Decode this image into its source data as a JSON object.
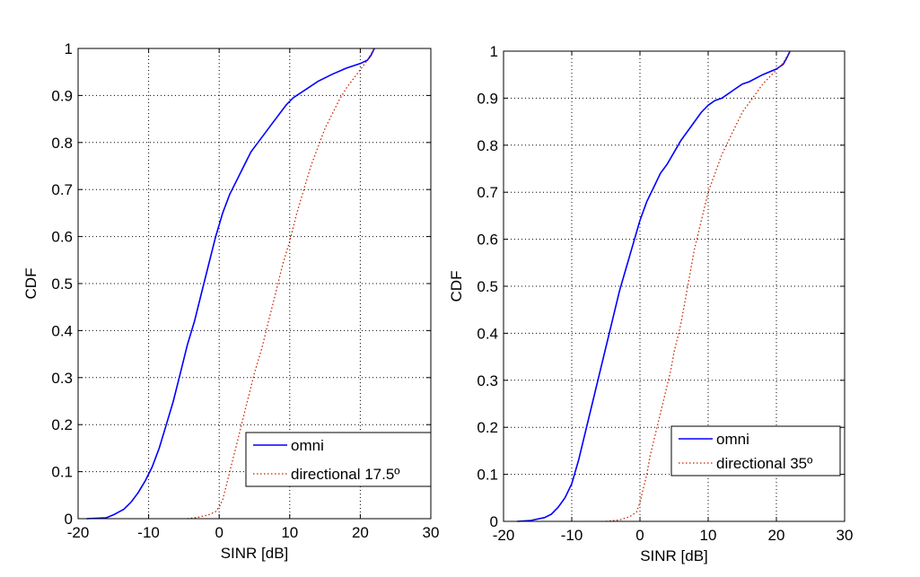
{
  "chart_data": [
    {
      "type": "line",
      "xlabel": "SINR [dB]",
      "ylabel": "CDF",
      "xlim": [
        -20,
        30
      ],
      "ylim": [
        0,
        1
      ],
      "xticks": [
        -20,
        -10,
        0,
        10,
        20,
        30
      ],
      "yticks": [
        0,
        0.1,
        0.2,
        0.3,
        0.4,
        0.5,
        0.6,
        0.7,
        0.8,
        0.9,
        1
      ],
      "xtick_labels": [
        "-20",
        "-10",
        "0",
        "10",
        "20",
        "30"
      ],
      "ytick_labels": [
        "0",
        "0.1",
        "0.2",
        "0.3",
        "0.4",
        "0.5",
        "0.6",
        "0.7",
        "0.8",
        "0.9",
        "1"
      ],
      "grid": true,
      "legend_position": "bottom-right",
      "series": [
        {
          "name": "omni",
          "color": "#0000ff",
          "style": "solid",
          "x": [
            -18.8,
            -16,
            -15,
            -13.5,
            -12.5,
            -11.5,
            -10.5,
            -9.5,
            -8.5,
            -7.5,
            -6.5,
            -5.5,
            -4.5,
            -3.5,
            -2.5,
            -1.5,
            -0.5,
            0.5,
            1.5,
            2.5,
            3.5,
            4.5,
            5.5,
            6.5,
            7.5,
            8.5,
            9.5,
            10.5,
            12,
            14,
            16,
            18,
            20,
            21,
            21.5,
            22
          ],
          "y": [
            0,
            0.002,
            0.008,
            0.02,
            0.035,
            0.055,
            0.08,
            0.11,
            0.15,
            0.2,
            0.25,
            0.31,
            0.37,
            0.42,
            0.48,
            0.54,
            0.6,
            0.65,
            0.69,
            0.72,
            0.75,
            0.78,
            0.8,
            0.82,
            0.84,
            0.86,
            0.88,
            0.895,
            0.91,
            0.93,
            0.945,
            0.958,
            0.968,
            0.975,
            0.985,
            1.0
          ]
        },
        {
          "name": "directional 17.5º",
          "color": "#cc2200",
          "style": "dotted",
          "x": [
            -4.5,
            -3,
            -1.5,
            -0.5,
            0,
            0.5,
            1,
            1.5,
            2,
            2.5,
            3,
            3.5,
            4,
            4.5,
            5,
            6,
            7,
            8,
            9,
            10,
            11,
            12,
            13,
            14,
            15,
            16,
            17,
            18,
            19,
            20,
            21,
            21.5,
            22
          ],
          "y": [
            0,
            0.003,
            0.008,
            0.015,
            0.025,
            0.04,
            0.07,
            0.1,
            0.13,
            0.16,
            0.19,
            0.22,
            0.25,
            0.28,
            0.31,
            0.36,
            0.42,
            0.48,
            0.54,
            0.59,
            0.65,
            0.7,
            0.75,
            0.79,
            0.83,
            0.86,
            0.89,
            0.915,
            0.935,
            0.955,
            0.975,
            0.988,
            1.0
          ]
        }
      ]
    },
    {
      "type": "line",
      "xlabel": "SINR [dB]",
      "ylabel": "CDF",
      "xlim": [
        -20,
        30
      ],
      "ylim": [
        0,
        1
      ],
      "xticks": [
        -20,
        -10,
        0,
        10,
        20,
        30
      ],
      "yticks": [
        0,
        0.1,
        0.2,
        0.3,
        0.4,
        0.5,
        0.6,
        0.7,
        0.8,
        0.9,
        1
      ],
      "xtick_labels": [
        "-20",
        "-10",
        "0",
        "10",
        "20",
        "30"
      ],
      "ytick_labels": [
        "0",
        "0.1",
        "0.2",
        "0.3",
        "0.4",
        "0.5",
        "0.6",
        "0.7",
        "0.8",
        "0.9",
        "1"
      ],
      "grid": true,
      "legend_position": "bottom-right",
      "series": [
        {
          "name": "omni",
          "color": "#0000ff",
          "style": "solid",
          "x": [
            -18,
            -16,
            -14,
            -13,
            -12,
            -11,
            -10,
            -9,
            -8,
            -7,
            -6,
            -5,
            -4,
            -3,
            -2,
            -1,
            0,
            1,
            2,
            3,
            4,
            5,
            6,
            7,
            8,
            9,
            10,
            11,
            12,
            13,
            14,
            15,
            16,
            18,
            20,
            21,
            21.5,
            22
          ],
          "y": [
            0,
            0.002,
            0.008,
            0.015,
            0.03,
            0.05,
            0.08,
            0.13,
            0.19,
            0.25,
            0.31,
            0.37,
            0.43,
            0.49,
            0.54,
            0.59,
            0.64,
            0.68,
            0.71,
            0.74,
            0.76,
            0.785,
            0.81,
            0.83,
            0.85,
            0.87,
            0.885,
            0.895,
            0.9,
            0.91,
            0.92,
            0.93,
            0.935,
            0.95,
            0.962,
            0.972,
            0.985,
            1.0
          ]
        },
        {
          "name": "directional 35º",
          "color": "#cc2200",
          "style": "dotted",
          "x": [
            -5,
            -3,
            -1.5,
            -0.5,
            0,
            0.5,
            1,
            1.5,
            2,
            2.5,
            3,
            3.5,
            4,
            4.5,
            5,
            6,
            7,
            8,
            9,
            10,
            11,
            12,
            13,
            14,
            15,
            16,
            17,
            18,
            19,
            20,
            21,
            21.5,
            22
          ],
          "y": [
            0,
            0.003,
            0.01,
            0.02,
            0.04,
            0.07,
            0.1,
            0.14,
            0.17,
            0.2,
            0.23,
            0.26,
            0.29,
            0.32,
            0.36,
            0.42,
            0.5,
            0.58,
            0.64,
            0.7,
            0.74,
            0.78,
            0.81,
            0.84,
            0.87,
            0.89,
            0.91,
            0.93,
            0.945,
            0.96,
            0.975,
            0.988,
            1.0
          ]
        }
      ]
    }
  ]
}
